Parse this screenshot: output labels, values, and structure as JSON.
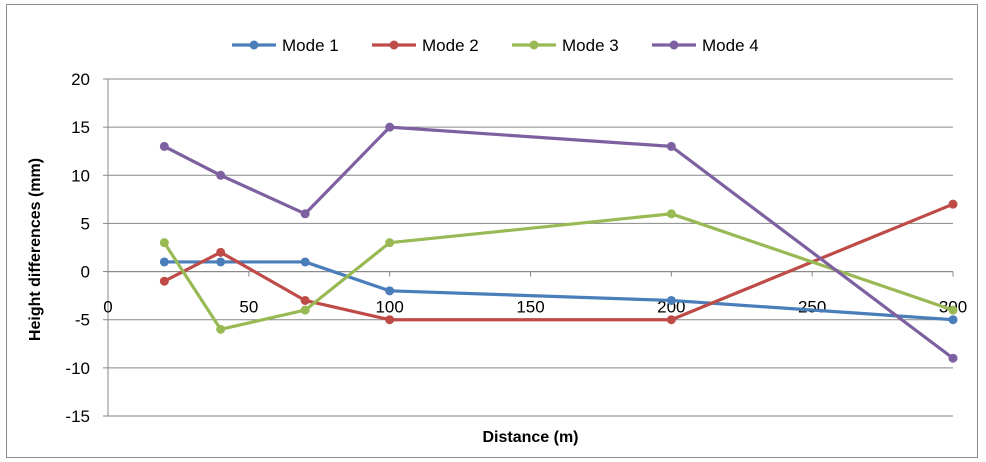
{
  "chart_data": {
    "type": "line",
    "title": "",
    "xlabel": "Distance (m)",
    "ylabel": "Height differences (mm)",
    "xlim": [
      0,
      300
    ],
    "ylim": [
      -15,
      20
    ],
    "x_ticks": [
      0,
      50,
      100,
      150,
      200,
      250,
      300
    ],
    "y_ticks": [
      -15,
      -10,
      -5,
      0,
      5,
      10,
      15,
      20
    ],
    "grid": "horizontal",
    "legend_position": "top",
    "x": [
      20,
      40,
      70,
      100,
      200,
      300
    ],
    "series": [
      {
        "name": "Mode 1",
        "color": "#4a7ebb",
        "values": [
          1,
          1,
          1,
          -2,
          -3,
          -5
        ]
      },
      {
        "name": "Mode 2",
        "color": "#be4b48",
        "values": [
          -1,
          2,
          -3,
          -5,
          -5,
          7
        ]
      },
      {
        "name": "Mode 3",
        "color": "#98b954",
        "values": [
          3,
          -6,
          -4,
          3,
          6,
          -4
        ]
      },
      {
        "name": "Mode 4",
        "color": "#7d60a0",
        "values": [
          13,
          10,
          6,
          15,
          13,
          -9
        ]
      }
    ]
  }
}
